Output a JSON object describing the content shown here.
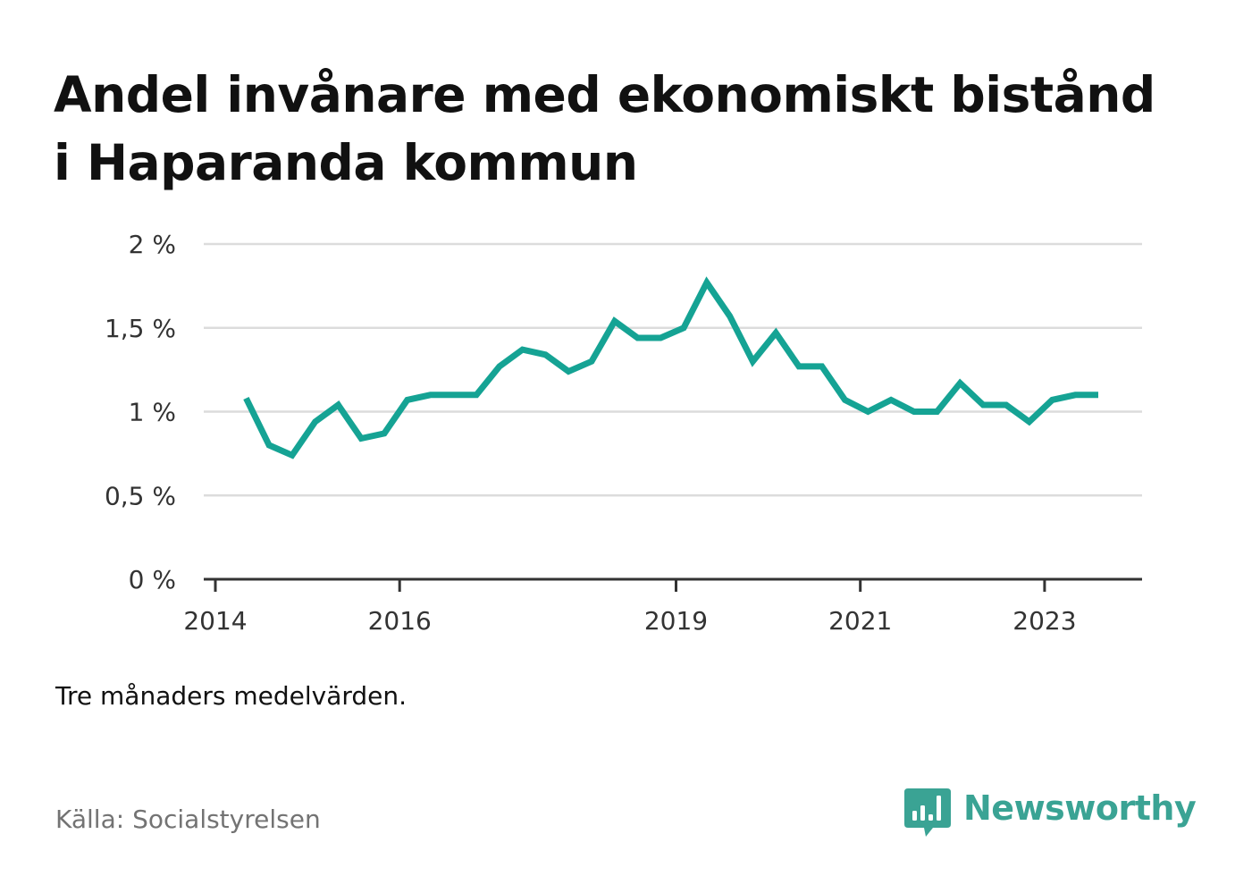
{
  "title": "Andel invånare med ekonomiskt bistånd i Haparanda kommun",
  "note": "Tre månaders medelvärden.",
  "source": "Källa: Socialstyrelsen",
  "brand": {
    "name": "Newsworthy",
    "icon": "newsworthy-logo-icon",
    "color": "#3aa394"
  },
  "chart_data": {
    "type": "line",
    "title": "Andel invånare med ekonomiskt bistånd i Haparanda kommun",
    "xlabel": "",
    "ylabel": "",
    "ylim": [
      0,
      2
    ],
    "xlim": [
      "2014-01",
      "2024-01"
    ],
    "grid": true,
    "legend": "none",
    "y_ticks": [
      {
        "value": 0,
        "label": "0 %"
      },
      {
        "value": 0.5,
        "label": "0,5 %"
      },
      {
        "value": 1,
        "label": "1 %"
      },
      {
        "value": 1.5,
        "label": "1,5 %"
      },
      {
        "value": 2,
        "label": "2 %"
      }
    ],
    "x_ticks": [
      {
        "value": "2014-01",
        "label": "2014"
      },
      {
        "value": "2016-01",
        "label": "2016"
      },
      {
        "value": "2019-01",
        "label": "2019"
      },
      {
        "value": "2021-01",
        "label": "2021"
      },
      {
        "value": "2023-01",
        "label": "2023"
      }
    ],
    "series": [
      {
        "color": "#15a394",
        "x": [
          "2014-05",
          "2014-08",
          "2014-11",
          "2015-02",
          "2015-05",
          "2015-08",
          "2015-11",
          "2016-02",
          "2016-05",
          "2016-08",
          "2016-11",
          "2017-02",
          "2017-05",
          "2017-08",
          "2017-11",
          "2018-02",
          "2018-05",
          "2018-08",
          "2018-11",
          "2019-02",
          "2019-05",
          "2019-08",
          "2019-11",
          "2020-02",
          "2020-05",
          "2020-08",
          "2020-11",
          "2021-02",
          "2021-05",
          "2021-08",
          "2021-11",
          "2022-02",
          "2022-05",
          "2022-08",
          "2022-11",
          "2023-02",
          "2023-05",
          "2023-08"
        ],
        "values": [
          1.08,
          0.8,
          0.74,
          0.94,
          1.04,
          0.84,
          0.87,
          1.07,
          1.1,
          1.1,
          1.1,
          1.27,
          1.37,
          1.34,
          1.24,
          1.3,
          1.54,
          1.44,
          1.44,
          1.5,
          1.77,
          1.57,
          1.3,
          1.47,
          1.27,
          1.27,
          1.07,
          1.0,
          1.07,
          1.0,
          1.0,
          1.17,
          1.04,
          1.04,
          0.94,
          1.07,
          1.1,
          1.1
        ]
      }
    ]
  }
}
